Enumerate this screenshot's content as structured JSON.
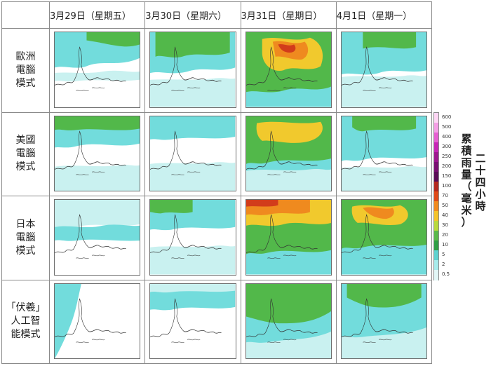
{
  "columns": [
    "3月29日（星期五）",
    "3月30日（星期六）",
    "3月31日（星期日）",
    "4月1日（星期一）"
  ],
  "rows": [
    {
      "lines": [
        "歐洲",
        "電腦",
        "模式"
      ]
    },
    {
      "lines": [
        "美國",
        "電腦",
        "模式"
      ]
    },
    {
      "lines": [
        "日本",
        "電腦",
        "模式"
      ]
    },
    {
      "lines": [
        "「伏羲」",
        "人工智",
        "能模式"
      ]
    }
  ],
  "legend": {
    "title_col1": "二十四小時",
    "title_col2": "累積雨量（毫米）",
    "ticks": [
      "600",
      "500",
      "400",
      "300",
      "250",
      "200",
      "150",
      "100",
      "70",
      "50",
      "40",
      "30",
      "20",
      "10",
      "5",
      "2",
      "0.5"
    ],
    "colors": [
      "#ffd6f5",
      "#f59ee6",
      "#e65fd2",
      "#c726b6",
      "#9e178f",
      "#7a0f72",
      "#5a0b55",
      "#b4281e",
      "#e04a18",
      "#f28a1e",
      "#f5c32a",
      "#b9d93c",
      "#5bb94a",
      "#2f9e45",
      "#5fd2d0",
      "#a7ecec",
      "#e2f7f7"
    ]
  },
  "colors": {
    "pale_cyan": "#c9f1f0",
    "cyan": "#72dcdc",
    "green": "#52b84a",
    "dark_green": "#2f9e45",
    "yellow": "#f1c92d",
    "orange": "#ef8a1f",
    "red": "#d23c1b"
  }
}
